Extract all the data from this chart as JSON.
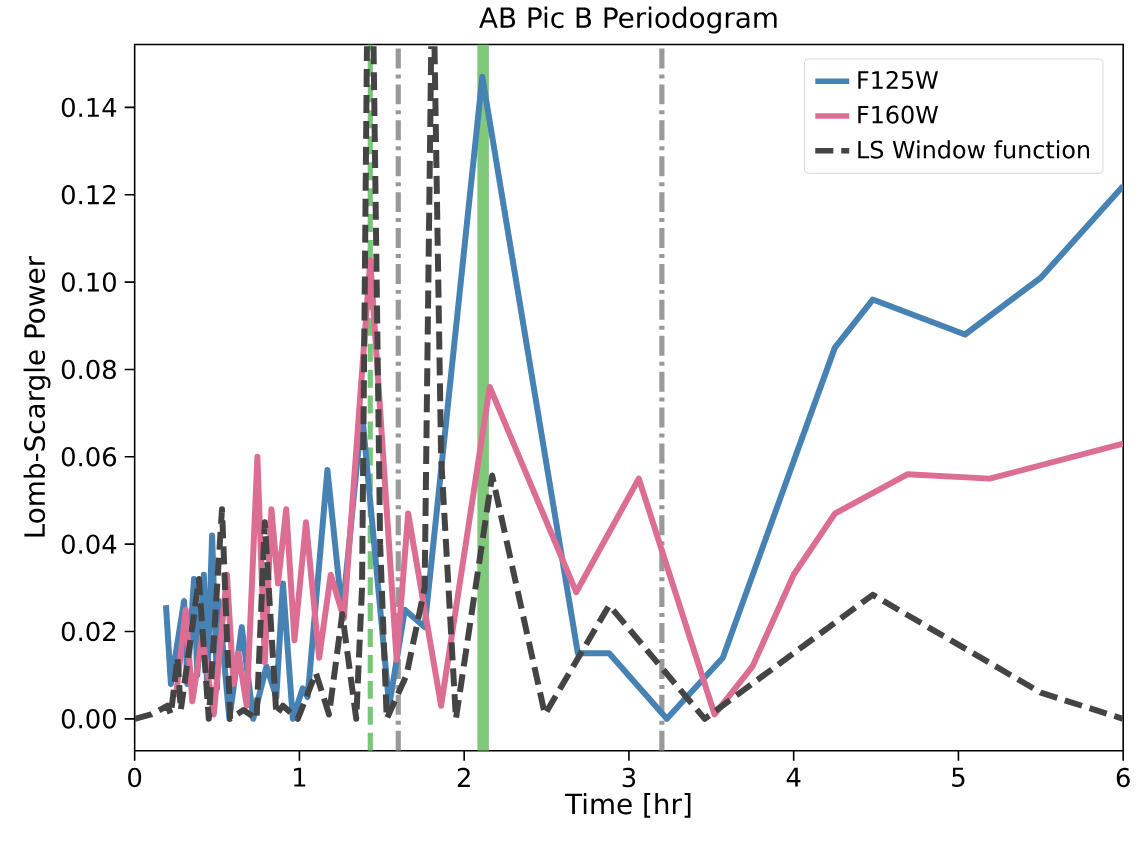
{
  "chart_data": {
    "type": "line",
    "title": "AB Pic B Periodogram",
    "xlabel": "Time [hr]",
    "ylabel": "Lomb-Scargle Power",
    "xlim": [
      0,
      6
    ],
    "ylim": [
      -0.0073,
      0.1544
    ],
    "xticks": [
      0,
      1,
      2,
      3,
      4,
      5,
      6
    ],
    "yticks": [
      {
        "value": 0,
        "label": "0.00"
      },
      {
        "value": 0.02,
        "label": "0.02"
      },
      {
        "value": 0.04,
        "label": "0.04"
      },
      {
        "value": 0.06,
        "label": "0.06"
      },
      {
        "value": 0.08,
        "label": "0.08"
      },
      {
        "value": 0.1,
        "label": "0.10"
      },
      {
        "value": 0.12,
        "label": "0.12"
      },
      {
        "value": 0.14,
        "label": "0.14"
      }
    ],
    "grid": false,
    "legend": "top right",
    "marker": "none",
    "series": [
      {
        "name": "F125W",
        "color": "#4682b4",
        "line_style": "solid",
        "x": [
          0.19,
          0.22,
          0.3,
          0.32,
          0.36,
          0.38,
          0.42,
          0.44,
          0.47,
          0.5,
          0.51,
          0.575,
          0.65,
          0.72,
          0.8,
          0.86,
          0.9,
          0.96,
          1.02,
          1.05,
          1.17,
          1.26,
          1.38,
          1.545,
          1.64,
          1.76,
          2.11,
          2.69,
          2.88,
          3.23,
          3.57,
          4.0,
          4.25,
          4.48,
          5.04,
          5.5,
          6.0
        ],
        "values": [
          0.026,
          0.008,
          0.027,
          0.008,
          0.032,
          0.01,
          0.033,
          0.007,
          0.042,
          0.007,
          0.027,
          0.0,
          0.021,
          0.0,
          0.012,
          0.005,
          0.031,
          0.0,
          0.007,
          0.005,
          0.057,
          0.024,
          0.07,
          0.003,
          0.025,
          0.021,
          0.147,
          0.015,
          0.015,
          0.0,
          0.014,
          0.059,
          0.085,
          0.096,
          0.088,
          0.101,
          0.122
        ]
      },
      {
        "name": "F160W",
        "color": "#dc6e94",
        "line_style": "solid",
        "x": [
          0.25,
          0.31,
          0.35,
          0.41,
          0.48,
          0.56,
          0.6,
          0.63,
          0.68,
          0.745,
          0.79,
          0.83,
          0.87,
          0.92,
          0.97,
          1.04,
          1.12,
          1.19,
          1.27,
          1.43,
          1.59,
          1.66,
          1.86,
          2.155,
          2.68,
          3.06,
          3.52,
          3.75,
          4.0,
          4.25,
          4.69,
          5.19,
          6.0
        ],
        "values": [
          0.005,
          0.025,
          0.004,
          0.019,
          0.001,
          0.033,
          0.008,
          0.015,
          0.003,
          0.06,
          0.013,
          0.048,
          0.031,
          0.048,
          0.018,
          0.045,
          0.014,
          0.033,
          0.023,
          0.105,
          0.0135,
          0.047,
          0.003,
          0.076,
          0.029,
          0.055,
          0.001,
          0.012,
          0.033,
          0.047,
          0.056,
          0.055,
          0.063
        ]
      },
      {
        "name": "LS Window function",
        "color": "#444444",
        "line_style": "dashed",
        "x": [
          0,
          0.1,
          0.2,
          0.22,
          0.26,
          0.28,
          0.39,
          0.45,
          0.53,
          0.58,
          0.66,
          0.74,
          0.79,
          0.86,
          0.9,
          0.99,
          1.1,
          1.18,
          1.26,
          1.345,
          1.38,
          1.41,
          1.43,
          1.45,
          1.49,
          1.53,
          1.65,
          1.76,
          1.8,
          1.81,
          1.82,
          1.86,
          1.95,
          2.17,
          2.49,
          2.88,
          3.46,
          4.48,
          5.5,
          6.0
        ],
        "values": [
          0,
          0.001,
          0.003,
          0.001,
          0.014,
          0.002,
          0.032,
          0.0,
          0.048,
          0.0,
          0.002,
          0.0,
          0.045,
          0.001,
          0.003,
          0.0,
          0.0105,
          0.001,
          0.024,
          0.0,
          0.03,
          0.154,
          null,
          0.154,
          0.04,
          0.0,
          0.01,
          0.03,
          0.154,
          null,
          0.154,
          0.06,
          0.0,
          0.0557,
          0.001,
          0.026,
          0.0,
          0.0284,
          0.006,
          0.0
        ]
      }
    ],
    "ref_lines": [
      {
        "axis": "x",
        "value": 1.43,
        "color": "#77c777",
        "line_style": "dashed"
      },
      {
        "axis": "x",
        "value": 1.6,
        "color": "#999999",
        "line_style": "dashdot"
      },
      {
        "axis": "x",
        "value": 3.2,
        "color": "#999999",
        "line_style": "dashdot"
      }
    ],
    "bands": [
      {
        "axis": "x",
        "from": 2.08,
        "to": 2.15,
        "color": "#80c87a"
      }
    ]
  }
}
